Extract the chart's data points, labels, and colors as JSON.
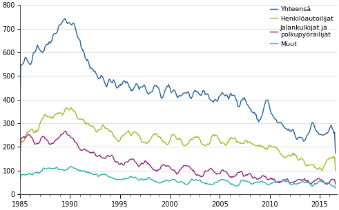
{
  "title": "",
  "xlabel": "",
  "ylabel": "",
  "ylim": [
    0,
    800
  ],
  "xlim": [
    1985,
    2016.7
  ],
  "yticks": [
    0,
    100,
    200,
    300,
    400,
    500,
    600,
    700,
    800
  ],
  "xticks": [
    1985,
    1990,
    1995,
    2000,
    2005,
    2010,
    2015
  ],
  "legend_labels": [
    "Yhteensä",
    "Henkilöautoilijat",
    "Jalankulkijat ja\npolkupyöräilijät",
    "Muut"
  ],
  "colors": [
    "#2060a0",
    "#a0b820",
    "#902080",
    "#20b0a0"
  ],
  "linewidth": 1.0,
  "background_color": "#ffffff",
  "grid_color": "#d0d0d0"
}
